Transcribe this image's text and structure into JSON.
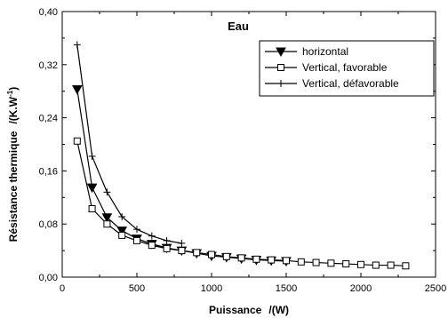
{
  "chart_data": {
    "type": "line",
    "title": "Eau",
    "xlabel": "Puissance",
    "xlabel_unit": "/(W)",
    "ylabel": "Résistance thermique",
    "ylabel_unit": "/(K.W",
    "ylabel_unit_sup": "-1",
    "ylabel_unit_close": ")",
    "xlim": [
      0,
      2500
    ],
    "ylim": [
      0.0,
      0.4
    ],
    "x_ticks": [
      0,
      500,
      1000,
      1500,
      2000,
      2500
    ],
    "x_tick_labels": [
      "0",
      "500",
      "1000",
      "1500",
      "2000",
      "2500"
    ],
    "y_ticks": [
      0.0,
      0.08,
      0.16,
      0.24,
      0.32,
      0.4
    ],
    "y_tick_labels": [
      "0,00",
      "0,08",
      "0,16",
      "0,24",
      "0,32",
      "0,40"
    ],
    "legend_position": "top-right",
    "grid": false,
    "series": [
      {
        "name": "horizontal",
        "marker": "triangle-down-filled",
        "x": [
          100,
          200,
          300,
          400,
          500,
          600,
          700,
          800,
          900,
          1000,
          1100,
          1200,
          1300,
          1400,
          1500
        ],
        "y": [
          0.283,
          0.135,
          0.09,
          0.07,
          0.058,
          0.05,
          0.044,
          0.04,
          0.036,
          0.032,
          0.03,
          0.028,
          0.026,
          0.025,
          0.024
        ]
      },
      {
        "name": "Vertical, favorable",
        "marker": "square-open",
        "x": [
          100,
          200,
          300,
          400,
          500,
          600,
          700,
          800,
          900,
          1000,
          1100,
          1200,
          1300,
          1400,
          1500,
          1600,
          1700,
          1800,
          1900,
          2000,
          2100,
          2200,
          2300
        ],
        "y": [
          0.205,
          0.103,
          0.08,
          0.063,
          0.055,
          0.048,
          0.043,
          0.04,
          0.037,
          0.034,
          0.031,
          0.029,
          0.027,
          0.026,
          0.025,
          0.023,
          0.022,
          0.021,
          0.02,
          0.019,
          0.018,
          0.018,
          0.017
        ]
      },
      {
        "name": "Vertical, défavorable",
        "marker": "plus",
        "x": [
          100,
          200,
          300,
          400,
          500,
          600,
          700,
          800
        ],
        "y": [
          0.35,
          0.182,
          0.128,
          0.091,
          0.072,
          0.062,
          0.055,
          0.051
        ]
      }
    ]
  }
}
